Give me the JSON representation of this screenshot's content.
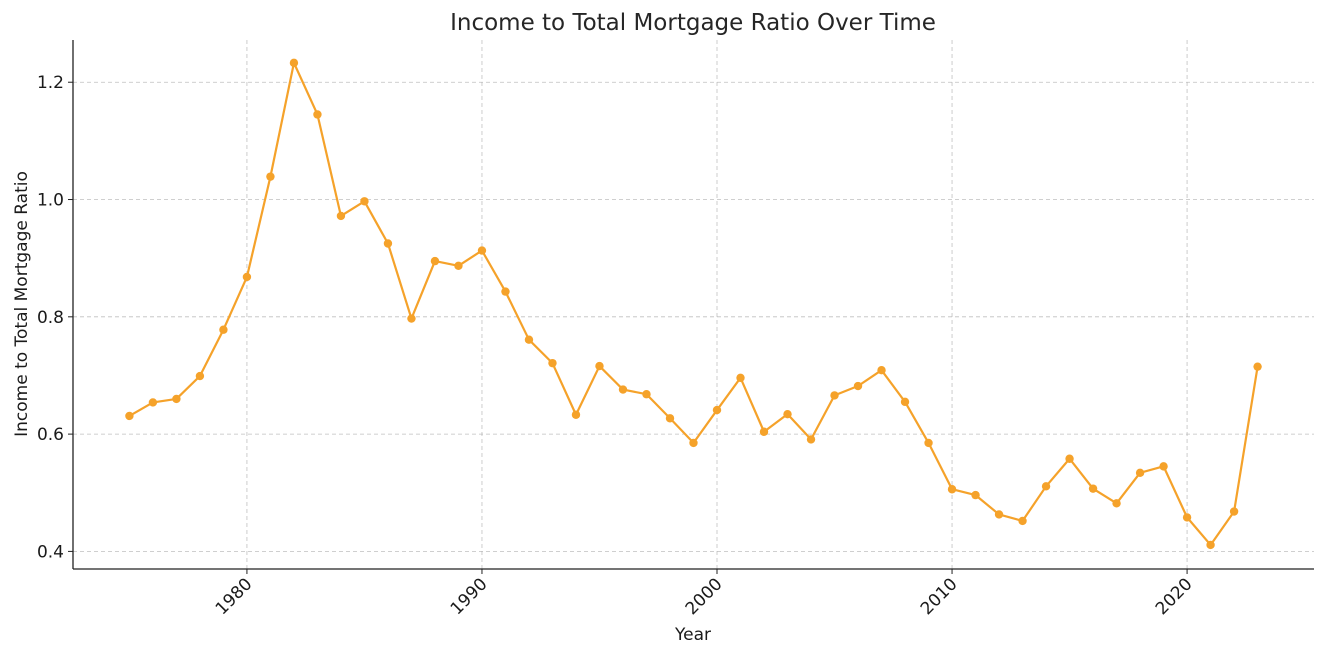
{
  "chart_data": {
    "type": "line",
    "title": "Income to Total Mortgage Ratio Over Time",
    "xlabel": "Year",
    "ylabel": "Income to Total Mortgage Ratio",
    "xlim": [
      1972.6,
      2025.4
    ],
    "ylim": [
      0.37,
      1.272
    ],
    "x_ticks": [
      1980,
      1990,
      2000,
      2010,
      2020
    ],
    "x_tick_labels": [
      "1980",
      "1990",
      "2000",
      "2010",
      "2020"
    ],
    "y_ticks": [
      0.4,
      0.6,
      0.8,
      1.0,
      1.2
    ],
    "y_tick_labels": [
      "0.4",
      "0.6",
      "0.8",
      "1.0",
      "1.2"
    ],
    "grid": true,
    "legend": "none",
    "series": [
      {
        "color": "#f5a22a",
        "marker": "circle",
        "x": [
          1975,
          1976,
          1977,
          1978,
          1979,
          1980,
          1981,
          1982,
          1983,
          1984,
          1985,
          1986,
          1987,
          1988,
          1989,
          1990,
          1991,
          1992,
          1993,
          1994,
          1995,
          1996,
          1997,
          1998,
          1999,
          2000,
          2001,
          2002,
          2003,
          2004,
          2005,
          2006,
          2007,
          2008,
          2009,
          2010,
          2011,
          2012,
          2013,
          2014,
          2015,
          2016,
          2017,
          2018,
          2019,
          2020,
          2021,
          2022,
          2023
        ],
        "y": [
          0.631,
          0.654,
          0.66,
          0.699,
          0.778,
          0.868,
          1.039,
          1.233,
          1.145,
          0.972,
          0.997,
          0.925,
          0.797,
          0.895,
          0.887,
          0.913,
          0.843,
          0.761,
          0.721,
          0.633,
          0.716,
          0.676,
          0.668,
          0.627,
          0.585,
          0.641,
          0.696,
          0.604,
          0.634,
          0.591,
          0.666,
          0.682,
          0.709,
          0.655,
          0.585,
          0.506,
          0.496,
          0.463,
          0.452,
          0.511,
          0.558,
          0.507,
          0.482,
          0.534,
          0.545,
          0.458,
          0.411,
          0.468,
          0.715
        ]
      }
    ]
  }
}
